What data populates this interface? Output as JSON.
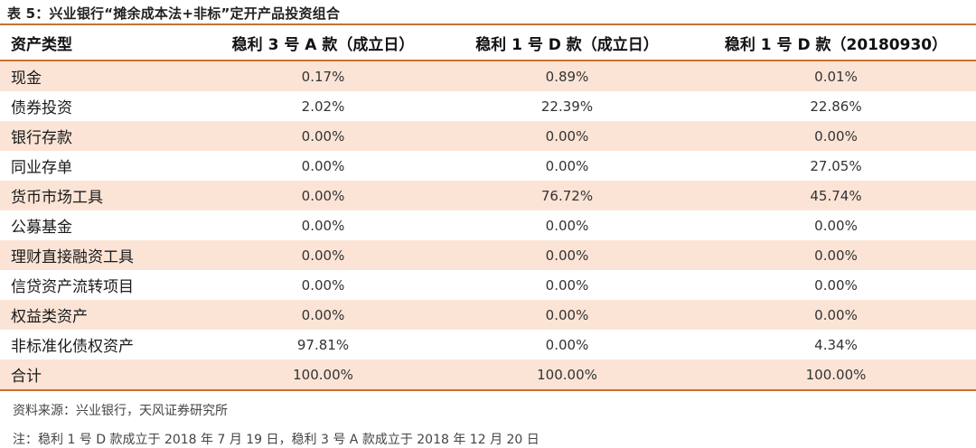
{
  "title": "表 5：兴业银行“摊余成本法+非标”定开产品投资组合",
  "table": {
    "headers": [
      "资产类型",
      "稳利 3 号 A 款（成立日）",
      "稳利 1 号 D 款（成立日）",
      "稳利 1 号 D 款（20180930）"
    ],
    "rows": [
      [
        "现金",
        "0.17%",
        "0.89%",
        "0.01%"
      ],
      [
        "债券投资",
        "2.02%",
        "22.39%",
        "22.86%"
      ],
      [
        "银行存款",
        "0.00%",
        "0.00%",
        "0.00%"
      ],
      [
        "同业存单",
        "0.00%",
        "0.00%",
        "27.05%"
      ],
      [
        "货币市场工具",
        "0.00%",
        "76.72%",
        "45.74%"
      ],
      [
        "公募基金",
        "0.00%",
        "0.00%",
        "0.00%"
      ],
      [
        "理财直接融资工具",
        "0.00%",
        "0.00%",
        "0.00%"
      ],
      [
        "信贷资产流转项目",
        "0.00%",
        "0.00%",
        "0.00%"
      ],
      [
        "权益类资产",
        "0.00%",
        "0.00%",
        "0.00%"
      ],
      [
        "非标准化债权资产",
        "97.81%",
        "0.00%",
        "4.34%"
      ],
      [
        "合计",
        "100.00%",
        "100.00%",
        "100.00%"
      ]
    ]
  },
  "source": "资料来源：兴业银行，天风证券研究所",
  "note": "注：稳利 1 号 D 款成立于 2018 年 7 月 19 日，稳利 3 号 A 款成立于 2018 年 12 月 20 日",
  "colors": {
    "accent": "#c8722f",
    "stripe": "#fbe4d6"
  }
}
